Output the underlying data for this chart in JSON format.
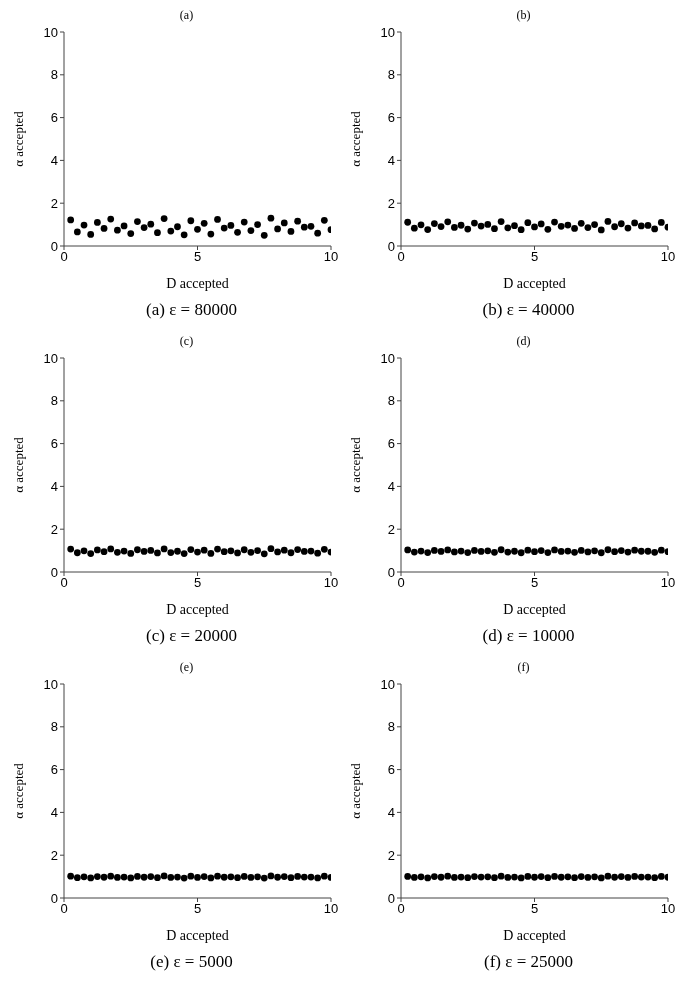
{
  "chart_data": [
    {
      "type": "scatter",
      "title": "(a)",
      "xlabel": "D accepted",
      "ylabel": "α accepted",
      "annotations": [
        "(a) ε = 80000"
      ],
      "xlim": [
        0,
        10
      ],
      "xticks": [
        0,
        5,
        10
      ],
      "ylim": [
        0,
        10
      ],
      "yticks": [
        0,
        2,
        4,
        6,
        8,
        10
      ],
      "marker": "circle",
      "color": "#000000",
      "x": [
        0.25,
        0.5,
        0.75,
        1.0,
        1.25,
        1.5,
        1.75,
        2.0,
        2.25,
        2.5,
        2.75,
        3.0,
        3.25,
        3.5,
        3.75,
        4.0,
        4.25,
        4.5,
        4.75,
        5.0,
        5.25,
        5.5,
        5.75,
        6.0,
        6.25,
        6.5,
        6.75,
        7.0,
        7.25,
        7.5,
        7.75,
        8.0,
        8.25,
        8.5,
        8.75,
        9.0,
        9.25,
        9.5,
        9.75,
        10.0
      ],
      "values": [
        1.22,
        0.66,
        0.98,
        0.54,
        1.1,
        0.82,
        1.26,
        0.74,
        0.94,
        0.58,
        1.14,
        0.86,
        1.02,
        0.62,
        1.28,
        0.7,
        0.9,
        0.52,
        1.18,
        0.78,
        1.06,
        0.56,
        1.24,
        0.84,
        0.96,
        0.64,
        1.12,
        0.72,
        1.0,
        0.5,
        1.3,
        0.8,
        1.08,
        0.68,
        1.16,
        0.88,
        0.92,
        0.6,
        1.2,
        0.76
      ]
    },
    {
      "type": "scatter",
      "title": "(b)",
      "xlabel": "D accepted",
      "ylabel": "α accepted",
      "annotations": [
        "(b) ε = 40000"
      ],
      "xlim": [
        0,
        10
      ],
      "xticks": [
        0,
        5,
        10
      ],
      "ylim": [
        0,
        10
      ],
      "yticks": [
        0,
        2,
        4,
        6,
        8,
        10
      ],
      "marker": "circle",
      "color": "#000000",
      "x": [
        0.25,
        0.5,
        0.75,
        1.0,
        1.25,
        1.5,
        1.75,
        2.0,
        2.25,
        2.5,
        2.75,
        3.0,
        3.25,
        3.5,
        3.75,
        4.0,
        4.25,
        4.5,
        4.75,
        5.0,
        5.25,
        5.5,
        5.75,
        6.0,
        6.25,
        6.5,
        6.75,
        7.0,
        7.25,
        7.5,
        7.75,
        8.0,
        8.25,
        8.5,
        8.75,
        9.0,
        9.25,
        9.5,
        9.75,
        10.0
      ],
      "values": [
        1.11,
        0.83,
        0.99,
        0.77,
        1.05,
        0.91,
        1.13,
        0.87,
        0.97,
        0.79,
        1.07,
        0.93,
        1.01,
        0.81,
        1.14,
        0.85,
        0.95,
        0.76,
        1.09,
        0.89,
        1.03,
        0.78,
        1.12,
        0.92,
        0.98,
        0.82,
        1.06,
        0.86,
        1.0,
        0.75,
        1.15,
        0.9,
        1.04,
        0.84,
        1.08,
        0.94,
        0.96,
        0.8,
        1.1,
        0.88
      ]
    },
    {
      "type": "scatter",
      "title": "(c)",
      "xlabel": "D accepted",
      "ylabel": "α accepted",
      "annotations": [
        "(c) ε = 20000"
      ],
      "xlim": [
        0,
        10
      ],
      "xticks": [
        0,
        5,
        10
      ],
      "ylim": [
        0,
        10
      ],
      "yticks": [
        0,
        2,
        4,
        6,
        8,
        10
      ],
      "marker": "circle",
      "color": "#000000",
      "x": [
        0.25,
        0.5,
        0.75,
        1.0,
        1.25,
        1.5,
        1.75,
        2.0,
        2.25,
        2.5,
        2.75,
        3.0,
        3.25,
        3.5,
        3.75,
        4.0,
        4.25,
        4.5,
        4.75,
        5.0,
        5.25,
        5.5,
        5.75,
        6.0,
        6.25,
        6.5,
        6.75,
        7.0,
        7.25,
        7.5,
        7.75,
        8.0,
        8.25,
        8.5,
        8.75,
        9.0,
        9.25,
        9.5,
        9.75,
        10.0
      ],
      "values": [
        1.07,
        0.9,
        0.99,
        0.86,
        1.03,
        0.95,
        1.08,
        0.92,
        0.98,
        0.87,
        1.04,
        0.96,
        1.01,
        0.89,
        1.08,
        0.91,
        0.97,
        0.86,
        1.05,
        0.93,
        1.02,
        0.87,
        1.07,
        0.95,
        0.99,
        0.89,
        1.04,
        0.92,
        1.0,
        0.85,
        1.09,
        0.94,
        1.02,
        0.9,
        1.05,
        0.96,
        0.98,
        0.88,
        1.06,
        0.93
      ]
    },
    {
      "type": "scatter",
      "title": "(d)",
      "xlabel": "D accepted",
      "ylabel": "α accepted",
      "annotations": [
        "(d) ε = 10000"
      ],
      "xlim": [
        0,
        10
      ],
      "xticks": [
        0,
        5,
        10
      ],
      "ylim": [
        0,
        10
      ],
      "yticks": [
        0,
        2,
        4,
        6,
        8,
        10
      ],
      "marker": "circle",
      "color": "#000000",
      "x": [
        0.25,
        0.5,
        0.75,
        1.0,
        1.25,
        1.5,
        1.75,
        2.0,
        2.25,
        2.5,
        2.75,
        3.0,
        3.25,
        3.5,
        3.75,
        4.0,
        4.25,
        4.5,
        4.75,
        5.0,
        5.25,
        5.5,
        5.75,
        6.0,
        6.25,
        6.5,
        6.75,
        7.0,
        7.25,
        7.5,
        7.75,
        8.0,
        8.25,
        8.5,
        8.75,
        9.0,
        9.25,
        9.5,
        9.75,
        10.0
      ],
      "values": [
        1.03,
        0.93,
        0.98,
        0.91,
        1.01,
        0.96,
        1.03,
        0.94,
        0.98,
        0.91,
        1.01,
        0.96,
        0.99,
        0.92,
        1.04,
        0.93,
        0.97,
        0.9,
        1.02,
        0.95,
        1.0,
        0.91,
        1.03,
        0.96,
        0.98,
        0.92,
        1.01,
        0.94,
        0.99,
        0.9,
        1.04,
        0.95,
        1.0,
        0.93,
        1.02,
        0.97,
        0.97,
        0.92,
        1.02,
        0.95
      ]
    },
    {
      "type": "scatter",
      "title": "(e)",
      "xlabel": "D accepted",
      "ylabel": "α accepted",
      "annotations": [
        "(e) ε = 5000"
      ],
      "xlim": [
        0,
        10
      ],
      "xticks": [
        0,
        5,
        10
      ],
      "ylim": [
        0,
        10
      ],
      "yticks": [
        0,
        2,
        4,
        6,
        8,
        10
      ],
      "marker": "circle",
      "color": "#000000",
      "x": [
        0.25,
        0.5,
        0.75,
        1.0,
        1.25,
        1.5,
        1.75,
        2.0,
        2.25,
        2.5,
        2.75,
        3.0,
        3.25,
        3.5,
        3.75,
        4.0,
        4.25,
        4.5,
        4.75,
        5.0,
        5.25,
        5.5,
        5.75,
        6.0,
        6.25,
        6.5,
        6.75,
        7.0,
        7.25,
        7.5,
        7.75,
        8.0,
        8.25,
        8.5,
        8.75,
        9.0,
        9.25,
        9.5,
        9.75,
        10.0
      ],
      "values": [
        1.02,
        0.95,
        0.99,
        0.94,
        1.0,
        0.97,
        1.02,
        0.96,
        0.98,
        0.94,
        1.01,
        0.97,
        1.0,
        0.95,
        1.03,
        0.96,
        0.98,
        0.93,
        1.02,
        0.96,
        1.0,
        0.94,
        1.02,
        0.97,
        0.99,
        0.95,
        1.01,
        0.96,
        0.99,
        0.93,
        1.03,
        0.97,
        1.0,
        0.95,
        1.01,
        0.98,
        0.98,
        0.94,
        1.02,
        0.96
      ]
    },
    {
      "type": "scatter",
      "title": "(f)",
      "xlabel": "D accepted",
      "ylabel": "α accepted",
      "annotations": [
        "(f) ε = 25000"
      ],
      "xlim": [
        0,
        10
      ],
      "xticks": [
        0,
        5,
        10
      ],
      "ylim": [
        0,
        10
      ],
      "yticks": [
        0,
        2,
        4,
        6,
        8,
        10
      ],
      "marker": "circle",
      "color": "#000000",
      "x": [
        0.25,
        0.5,
        0.75,
        1.0,
        1.25,
        1.5,
        1.75,
        2.0,
        2.25,
        2.5,
        2.75,
        3.0,
        3.25,
        3.5,
        3.75,
        4.0,
        4.25,
        4.5,
        4.75,
        5.0,
        5.25,
        5.5,
        5.75,
        6.0,
        6.25,
        6.5,
        6.75,
        7.0,
        7.25,
        7.5,
        7.75,
        8.0,
        8.25,
        8.5,
        8.75,
        9.0,
        9.25,
        9.5,
        9.75,
        10.0
      ],
      "values": [
        1.01,
        0.96,
        0.99,
        0.94,
        1.0,
        0.97,
        1.02,
        0.96,
        0.98,
        0.95,
        1.0,
        0.98,
        0.99,
        0.95,
        1.02,
        0.96,
        0.98,
        0.94,
        1.01,
        0.97,
        1.0,
        0.95,
        1.01,
        0.97,
        0.99,
        0.95,
        1.0,
        0.96,
        0.99,
        0.94,
        1.02,
        0.97,
        1.0,
        0.96,
        1.01,
        0.98,
        0.98,
        0.95,
        1.01,
        0.97
      ]
    }
  ]
}
